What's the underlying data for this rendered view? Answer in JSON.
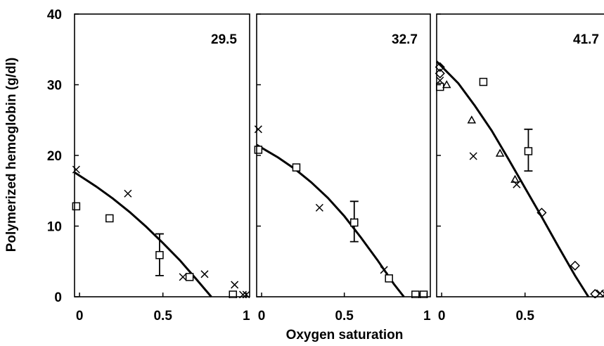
{
  "chart_data": {
    "type": "scatter",
    "xlabel": "Oxygen saturation",
    "ylabel": "Polymerized hemoglobin (g/dl)",
    "ylim": [
      0,
      40
    ],
    "xlim": [
      -0.03,
      1.02
    ],
    "y_ticks": [
      "0",
      "10",
      "20",
      "30",
      "40"
    ],
    "x_ticks": [
      "0",
      "0.5",
      "1"
    ],
    "grid": false,
    "legend": "none",
    "panels": [
      {
        "label": "29.5",
        "x_tick_labels": [
          "0",
          "0.5",
          "1"
        ],
        "fit_curve": [
          [
            -0.03,
            17.6
          ],
          [
            0.1,
            15.6
          ],
          [
            0.2,
            13.9
          ],
          [
            0.3,
            12.0
          ],
          [
            0.4,
            9.9
          ],
          [
            0.5,
            7.6
          ],
          [
            0.6,
            5.2
          ],
          [
            0.7,
            2.5
          ],
          [
            0.79,
            0.0
          ]
        ],
        "points": [
          {
            "marker": "x",
            "x": -0.02,
            "y": 18
          },
          {
            "marker": "x",
            "x": 0.29,
            "y": 14.6
          },
          {
            "marker": "x",
            "x": 0.62,
            "y": 2.8
          },
          {
            "marker": "x",
            "x": 0.75,
            "y": 3.2
          },
          {
            "marker": "x",
            "x": 0.93,
            "y": 1.7
          },
          {
            "marker": "x",
            "x": 0.98,
            "y": 0.3
          },
          {
            "marker": "x",
            "x": 1.0,
            "y": 0.3
          },
          {
            "marker": "square",
            "x": -0.02,
            "y": 12.8
          },
          {
            "marker": "square",
            "x": 0.18,
            "y": 11.1
          },
          {
            "marker": "square",
            "x": 0.48,
            "y": 5.9,
            "err_low": 3.0,
            "err_high": 8.9
          },
          {
            "marker": "square",
            "x": 0.66,
            "y": 2.8
          },
          {
            "marker": "square",
            "x": 0.92,
            "y": 0.3
          }
        ]
      },
      {
        "label": "32.7",
        "x_tick_labels": [
          "0",
          "0.5",
          "1"
        ],
        "fit_curve": [
          [
            -0.03,
            21.5
          ],
          [
            0.1,
            19.7
          ],
          [
            0.2,
            18.1
          ],
          [
            0.3,
            16.2
          ],
          [
            0.4,
            14.0
          ],
          [
            0.5,
            11.4
          ],
          [
            0.6,
            8.4
          ],
          [
            0.7,
            5.2
          ],
          [
            0.8,
            1.8
          ],
          [
            0.86,
            0.0
          ]
        ],
        "points": [
          {
            "marker": "x",
            "x": -0.02,
            "y": 23.7
          },
          {
            "marker": "x",
            "x": 0.35,
            "y": 12.6
          },
          {
            "marker": "x",
            "x": 0.56,
            "y": 10.6
          },
          {
            "marker": "x",
            "x": 0.74,
            "y": 3.8
          },
          {
            "marker": "x",
            "x": 0.95,
            "y": 0.3
          },
          {
            "marker": "square",
            "x": -0.02,
            "y": 20.8
          },
          {
            "marker": "square",
            "x": 0.21,
            "y": 18.3
          },
          {
            "marker": "square",
            "x": 0.56,
            "y": 10.5,
            "err_low": 7.8,
            "err_high": 13.5
          },
          {
            "marker": "square",
            "x": 0.77,
            "y": 2.6
          },
          {
            "marker": "square",
            "x": 0.93,
            "y": 0.3
          },
          {
            "marker": "square",
            "x": 0.98,
            "y": 0.3
          }
        ]
      },
      {
        "label": "41.7",
        "x_tick_labels": [
          "0",
          "0.5",
          "1"
        ],
        "fit_curve": [
          [
            -0.03,
            33.3
          ],
          [
            0.1,
            30.2
          ],
          [
            0.2,
            27.0
          ],
          [
            0.3,
            23.5
          ],
          [
            0.4,
            19.5
          ],
          [
            0.5,
            15.4
          ],
          [
            0.6,
            11.3
          ],
          [
            0.7,
            7.1
          ],
          [
            0.8,
            3.0
          ],
          [
            0.88,
            0.0
          ]
        ],
        "points": [
          {
            "marker": "x",
            "x": -0.01,
            "y": 30.6
          },
          {
            "marker": "x",
            "x": 0.19,
            "y": 19.9
          },
          {
            "marker": "x",
            "x": 0.45,
            "y": 15.9
          },
          {
            "marker": "square",
            "x": -0.01,
            "y": 29.7
          },
          {
            "marker": "square",
            "x": 0.25,
            "y": 30.4
          },
          {
            "marker": "square",
            "x": 0.52,
            "y": 20.6,
            "err_low": 17.8,
            "err_high": 23.7
          },
          {
            "marker": "triangle",
            "x": 0.03,
            "y": 30.0
          },
          {
            "marker": "triangle",
            "x": 0.18,
            "y": 25.0
          },
          {
            "marker": "triangle",
            "x": 0.35,
            "y": 20.3
          },
          {
            "marker": "triangle",
            "x": 0.44,
            "y": 16.6
          },
          {
            "marker": "diamond",
            "x": -0.01,
            "y": 31.6
          },
          {
            "marker": "diamond",
            "x": -0.01,
            "y": 32.5
          },
          {
            "marker": "diamond",
            "x": 0.6,
            "y": 11.9
          },
          {
            "marker": "diamond",
            "x": 0.8,
            "y": 4.4
          },
          {
            "marker": "diamond",
            "x": 0.92,
            "y": 0.4
          },
          {
            "marker": "x",
            "x": 0.95,
            "y": 0.5
          },
          {
            "marker": "x",
            "x": 0.98,
            "y": 0.4
          },
          {
            "marker": "diamond",
            "x": 1.0,
            "y": 0.4
          }
        ]
      }
    ]
  }
}
